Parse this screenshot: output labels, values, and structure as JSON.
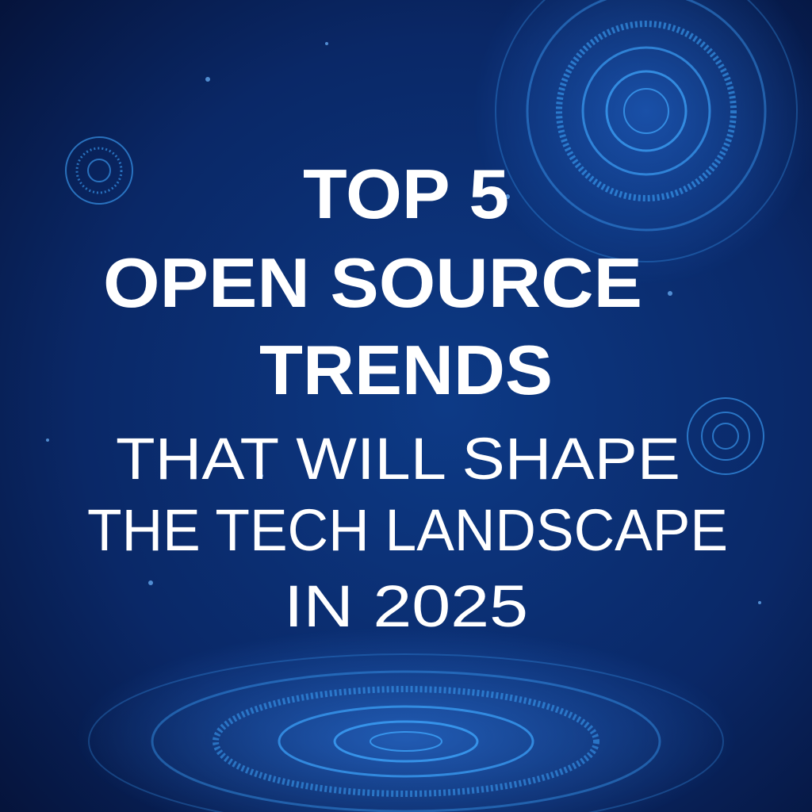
{
  "headline": {
    "lines": [
      "TOP 5",
      "OPEN SOURCE",
      "TRENDS"
    ]
  },
  "subheadline": {
    "lines": [
      "THAT WILL SHAPE",
      "THE TECH LANDSCAPE",
      "IN 2025"
    ]
  }
}
